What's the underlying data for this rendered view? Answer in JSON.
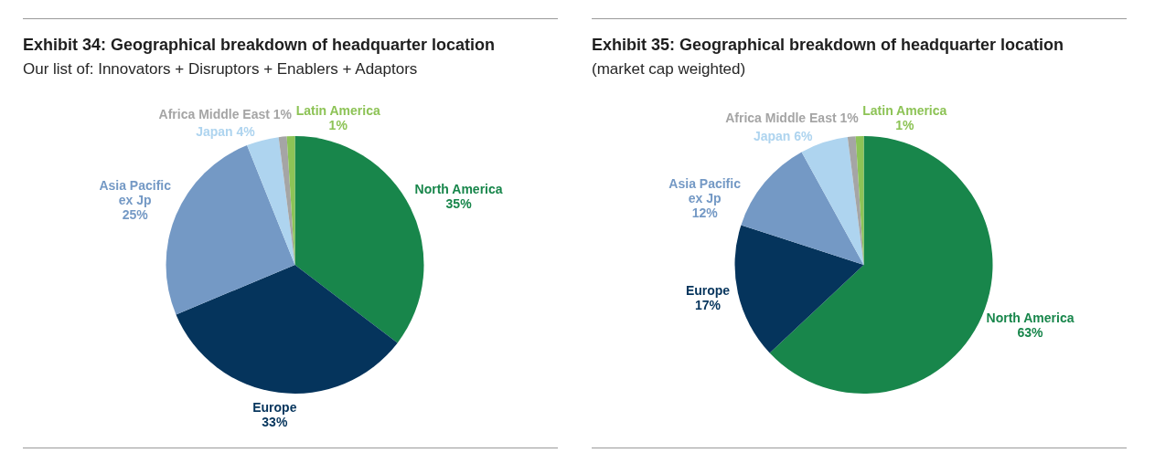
{
  "chart_data": [
    {
      "type": "pie",
      "title": "Exhibit 34: Geographical breakdown of headquarter location",
      "subtitle": "Our list of: Innovators + Disruptors + Enablers + Adaptors",
      "categories": [
        "North America",
        "Europe",
        "Asia Pacific\nex Jp",
        "Japan",
        "Africa Middle East",
        "Latin America"
      ],
      "values": [
        35,
        33,
        25,
        4,
        1,
        1
      ],
      "value_labels": [
        "35%",
        "33%",
        "25%",
        "4%",
        "1%",
        "1%"
      ],
      "colors": [
        "#18864b",
        "#05345c",
        "#7499c5",
        "#aed4ef",
        "#a5a5a5",
        "#8dc356"
      ]
    },
    {
      "type": "pie",
      "title": "Exhibit 35: Geographical breakdown of headquarter location",
      "subtitle": "(market cap weighted)",
      "categories": [
        "North America",
        "Europe",
        "Asia Pacific\nex Jp",
        "Japan",
        "Africa Middle East",
        "Latin America"
      ],
      "values": [
        63,
        17,
        12,
        6,
        1,
        1
      ],
      "value_labels": [
        "63%",
        "17%",
        "12%",
        "6%",
        "1%",
        "1%"
      ],
      "colors": [
        "#18864b",
        "#05345c",
        "#7499c5",
        "#aed4ef",
        "#a5a5a5",
        "#8dc356"
      ]
    }
  ]
}
